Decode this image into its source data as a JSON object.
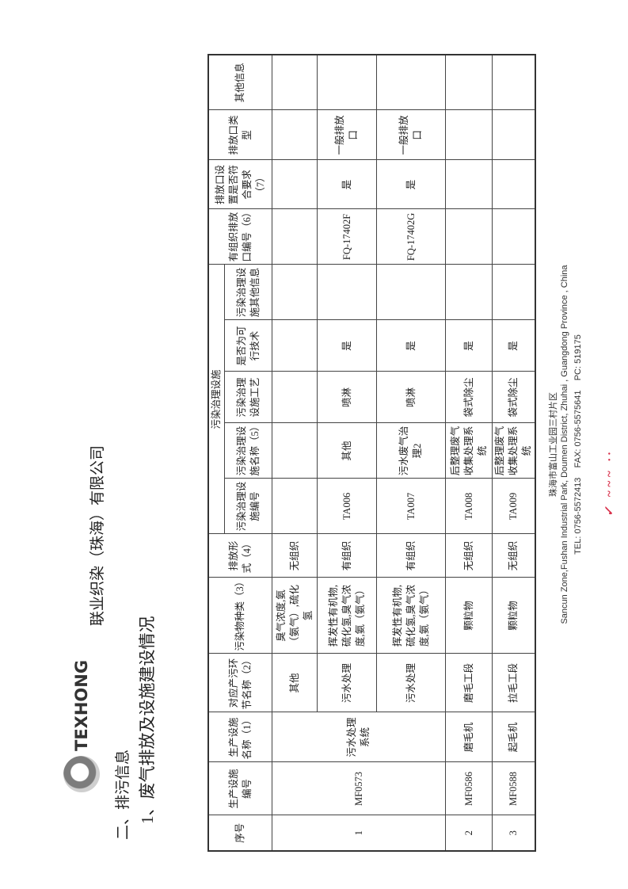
{
  "header": {
    "logo_text": "TEXHONG",
    "company": "联业织染（珠海）有限公司",
    "section": "二、排污信息",
    "subsection": "1、废气排放及设施建设情况"
  },
  "table": {
    "headers": {
      "seq": "序号",
      "facility_id": "生产设施编号",
      "facility_name": "生产设施名称（1）",
      "process": "对应产污环节名称（2）",
      "pollutant": "污染物种类（3）",
      "emission_form": "排放形式（4）",
      "treatment_group": "污染治理设施",
      "treatment_id": "污染治理设施编号",
      "treatment_name": "污染治理设施名称（5）",
      "treatment_tech": "污染治理设施工艺",
      "feasible": "是否为可行技术",
      "treatment_other": "污染治理设施其他信息",
      "outlet_id": "有组织排放口编号（6）",
      "outlet_ok": "排放口设置是否符合要求（7）",
      "outlet_type": "排放口类型",
      "other": "其他信息"
    },
    "rows": [
      {
        "seq": "1",
        "facility_id": "MF0573",
        "facility_name": "污水处理系统",
        "process": "其他",
        "pollutant": "臭气浓度,氨（氨气）,硫化氢",
        "emission_form": "无组织",
        "treatment_id": "",
        "treatment_name": "",
        "treatment_tech": "",
        "feasible": "",
        "treatment_other": "",
        "outlet_id": "",
        "outlet_ok": "",
        "outlet_type": "",
        "other": ""
      },
      {
        "process": "污水处理",
        "pollutant": "挥发性有机物,硫化氢,臭气浓度,氨（氨气）",
        "emission_form": "有组织",
        "treatment_id": "TA006",
        "treatment_name": "其他",
        "treatment_tech": "喷淋",
        "feasible": "是",
        "treatment_other": "",
        "outlet_id": "FQ-17402F",
        "outlet_ok": "是",
        "outlet_type": "一般排放口",
        "other": ""
      },
      {
        "process": "污水处理",
        "pollutant": "挥发性有机物,硫化氢,臭气浓度,氨（氨气）",
        "emission_form": "有组织",
        "treatment_id": "TA007",
        "treatment_name": "污水废气治理2",
        "treatment_tech": "喷淋",
        "feasible": "是",
        "treatment_other": "",
        "outlet_id": "FQ-17402G",
        "outlet_ok": "是",
        "outlet_type": "一般排放口",
        "other": ""
      },
      {
        "seq": "2",
        "facility_id": "MF0586",
        "facility_name": "磨毛机",
        "process": "磨毛工段",
        "pollutant": "颗粒物",
        "emission_form": "无组织",
        "treatment_id": "TA008",
        "treatment_name": "后整理废气收集处理系统",
        "treatment_tech": "袋式除尘",
        "feasible": "是",
        "treatment_other": "",
        "outlet_id": "",
        "outlet_ok": "",
        "outlet_type": "",
        "other": ""
      },
      {
        "seq": "3",
        "facility_id": "MF0588",
        "facility_name": "起毛机",
        "process": "拉毛工段",
        "pollutant": "颗粒物",
        "emission_form": "无组织",
        "treatment_id": "TA009",
        "treatment_name": "后整理废气收集处理系统",
        "treatment_tech": "袋式除尘",
        "feasible": "是",
        "treatment_other": "",
        "outlet_id": "",
        "outlet_ok": "",
        "outlet_type": "",
        "other": ""
      }
    ]
  },
  "footer": {
    "address_cn": "珠海市富山工业园三村片区",
    "address_en": "Sancun Zone,Fushan Industrial Park, Doumen District, Zhuhai , Guangdong Province , China",
    "contact": "TEL: 0756-5572413    FAX: 0756-5575641    PC: 519175",
    "signature": "手写签名"
  }
}
